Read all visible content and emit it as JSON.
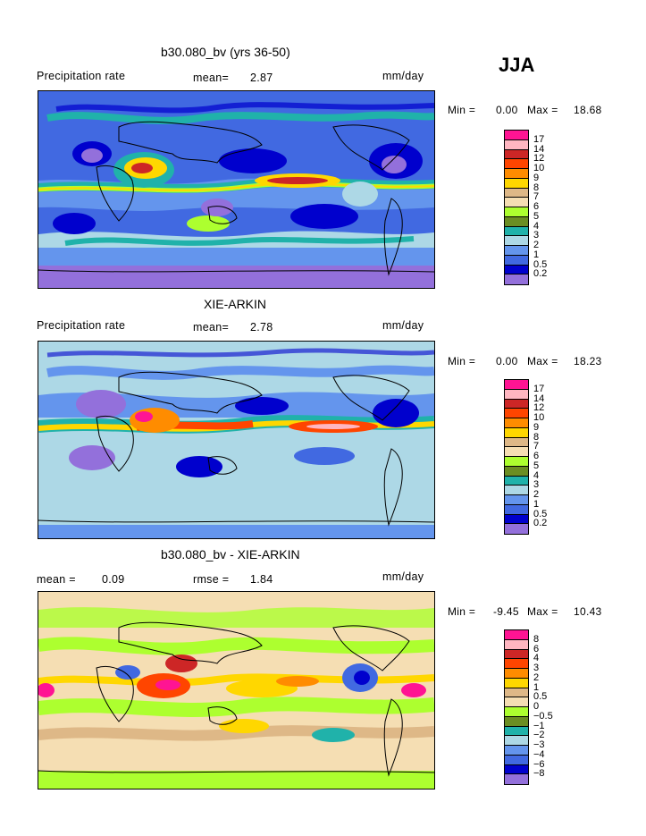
{
  "season": "JJA",
  "panels": [
    {
      "title": "b30.080_bv (yrs 36-50)",
      "left_label": "Precipitation rate",
      "mid_label": "mean=",
      "mid_value": "2.87",
      "right_label": "mm/day",
      "min_label": "Min =",
      "min_value": "0.00",
      "max_label": "Max =",
      "max_value": "18.68"
    },
    {
      "title": "XIE-ARKIN",
      "left_label": "Precipitation rate",
      "mid_label": "mean=",
      "mid_value": "2.78",
      "right_label": "mm/day",
      "min_label": "Min =",
      "min_value": "0.00",
      "max_label": "Max =",
      "max_value": "18.23"
    },
    {
      "title": "b30.080_bv - XIE-ARKIN",
      "left_label": "mean =",
      "left_value": "0.09",
      "mid_label": "rmse =",
      "mid_value": "1.84",
      "right_label": "mm/day",
      "min_label": "Min =",
      "min_value": "-9.45",
      "max_label": "Max =",
      "max_value": "10.43"
    }
  ],
  "chart_data": [
    {
      "type": "heatmap",
      "title": "b30.080_bv (yrs 36-50)",
      "variable": "Precipitation rate",
      "units": "mm/day",
      "mean": 2.87,
      "min": 0.0,
      "max": 18.68,
      "colorbar_levels": [
        "17",
        "14",
        "12",
        "10",
        "9",
        "8",
        "7",
        "6",
        "5",
        "4",
        "3",
        "2",
        "1",
        "0.5",
        "0.2"
      ],
      "colorbar_colors": [
        "#ff1493",
        "#ffb6c1",
        "#cd2626",
        "#ff4500",
        "#ff8c00",
        "#ffd700",
        "#deb887",
        "#f5deb3",
        "#adff2f",
        "#6b8e23",
        "#20b2aa",
        "#add8e6",
        "#6495ed",
        "#4169e1",
        "#0000cd",
        "#9370db"
      ]
    },
    {
      "type": "heatmap",
      "title": "XIE-ARKIN",
      "variable": "Precipitation rate",
      "units": "mm/day",
      "mean": 2.78,
      "min": 0.0,
      "max": 18.23,
      "colorbar_levels": [
        "17",
        "14",
        "12",
        "10",
        "9",
        "8",
        "7",
        "6",
        "5",
        "4",
        "3",
        "2",
        "1",
        "0.5",
        "0.2"
      ],
      "colorbar_colors": [
        "#ff1493",
        "#ffb6c1",
        "#cd2626",
        "#ff4500",
        "#ff8c00",
        "#ffd700",
        "#deb887",
        "#f5deb3",
        "#adff2f",
        "#6b8e23",
        "#20b2aa",
        "#add8e6",
        "#6495ed",
        "#4169e1",
        "#0000cd",
        "#9370db"
      ]
    },
    {
      "type": "heatmap",
      "title": "b30.080_bv - XIE-ARKIN",
      "units": "mm/day",
      "mean": 0.09,
      "rmse": 1.84,
      "min": -9.45,
      "max": 10.43,
      "colorbar_levels": [
        "8",
        "6",
        "4",
        "3",
        "2",
        "1",
        "0.5",
        "0",
        "−0.5",
        "−1",
        "−2",
        "−3",
        "−4",
        "−6",
        "−8"
      ],
      "colorbar_colors": [
        "#ff1493",
        "#ffb6c1",
        "#cd2626",
        "#ff4500",
        "#ff8c00",
        "#ffd700",
        "#deb887",
        "#f5deb3",
        "#adff2f",
        "#6b8e23",
        "#20b2aa",
        "#add8e6",
        "#6495ed",
        "#4169e1",
        "#0000cd",
        "#9370db"
      ]
    }
  ]
}
